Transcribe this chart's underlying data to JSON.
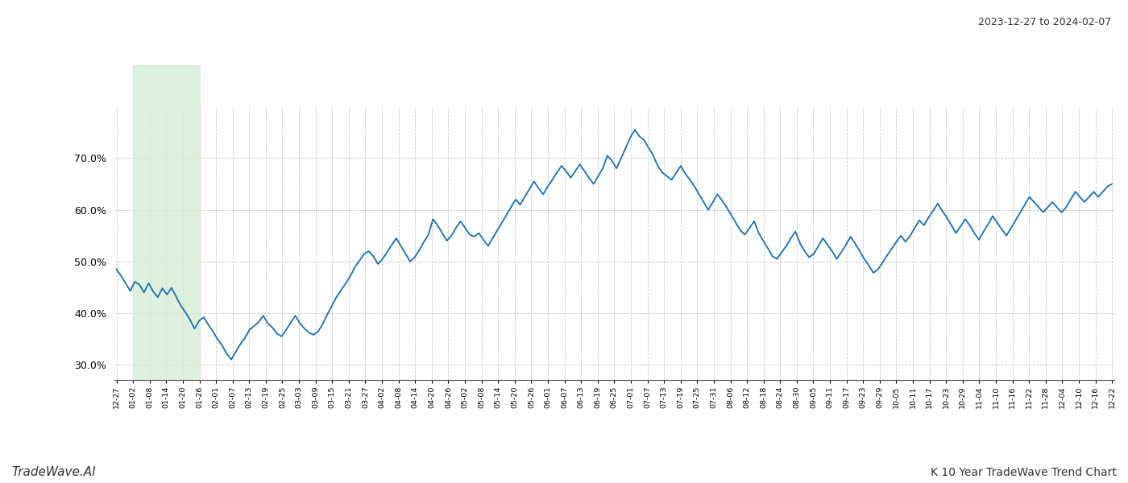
{
  "title_top_right": "2023-12-27 to 2024-02-07",
  "title_bottom_left": "TradeWave.AI",
  "title_bottom_right": "K 10 Year TradeWave Trend Chart",
  "line_color": "#1a6faf",
  "line_width": 1.3,
  "bg_color": "#ffffff",
  "grid_color": "#c8c8c8",
  "grid_linestyle": "--",
  "highlight_color": "#d6edd6",
  "highlight_alpha": 0.8,
  "ylim": [
    27.0,
    80.0
  ],
  "yticks": [
    30.0,
    40.0,
    50.0,
    60.0,
    70.0
  ],
  "xtick_labels": [
    "12-27",
    "01-02",
    "01-08",
    "01-14",
    "01-20",
    "01-26",
    "02-01",
    "02-07",
    "02-13",
    "02-19",
    "02-25",
    "03-03",
    "03-09",
    "03-15",
    "03-21",
    "03-27",
    "04-02",
    "04-08",
    "04-14",
    "04-20",
    "04-26",
    "05-02",
    "05-08",
    "05-14",
    "05-20",
    "05-26",
    "06-01",
    "06-07",
    "06-13",
    "06-19",
    "06-25",
    "07-01",
    "07-07",
    "07-13",
    "07-19",
    "07-25",
    "07-31",
    "08-06",
    "08-12",
    "08-18",
    "08-24",
    "08-30",
    "09-05",
    "09-11",
    "09-17",
    "09-23",
    "09-29",
    "10-05",
    "10-11",
    "10-17",
    "10-23",
    "10-29",
    "11-04",
    "11-10",
    "11-16",
    "11-22",
    "11-28",
    "12-04",
    "12-10",
    "12-16",
    "12-22"
  ],
  "highlight_label_start": "01-02",
  "highlight_label_end": "01-26",
  "values": [
    48.5,
    47.2,
    45.8,
    44.3,
    46.1,
    45.5,
    44.0,
    45.8,
    44.2,
    43.1,
    44.8,
    43.6,
    44.9,
    43.2,
    41.5,
    40.2,
    38.8,
    37.0,
    38.5,
    39.2,
    37.8,
    36.5,
    35.0,
    33.8,
    32.2,
    31.0,
    32.5,
    34.0,
    35.2,
    36.8,
    37.5,
    38.3,
    39.5,
    38.0,
    37.2,
    36.0,
    35.5,
    36.8,
    38.2,
    39.5,
    38.0,
    37.0,
    36.2,
    35.8,
    36.5,
    38.0,
    39.8,
    41.5,
    43.2,
    44.5,
    45.8,
    47.2,
    49.0,
    50.2,
    51.5,
    52.0,
    51.0,
    49.5,
    50.5,
    51.8,
    53.2,
    54.5,
    53.0,
    51.5,
    50.0,
    50.8,
    52.2,
    53.8,
    55.2,
    58.2,
    57.0,
    55.5,
    54.0,
    55.0,
    56.5,
    57.8,
    56.5,
    55.2,
    54.8,
    55.5,
    54.2,
    53.0,
    54.5,
    56.0,
    57.5,
    59.0,
    60.5,
    62.0,
    61.0,
    62.5,
    64.0,
    65.5,
    64.2,
    63.0,
    64.5,
    65.8,
    67.2,
    68.5,
    67.5,
    66.2,
    67.5,
    68.8,
    67.5,
    66.2,
    65.0,
    66.5,
    68.0,
    70.5,
    69.5,
    68.0,
    70.0,
    72.0,
    74.0,
    75.5,
    74.2,
    73.5,
    72.0,
    70.5,
    68.5,
    67.2,
    66.5,
    65.8,
    67.2,
    68.5,
    67.0,
    65.8,
    64.5,
    63.0,
    61.5,
    60.0,
    61.5,
    63.0,
    61.8,
    60.5,
    59.0,
    57.5,
    56.0,
    55.2,
    56.5,
    57.8,
    55.5,
    54.0,
    52.5,
    51.0,
    50.5,
    51.8,
    53.0,
    54.5,
    55.8,
    53.5,
    52.0,
    50.8,
    51.5,
    53.0,
    54.5,
    53.2,
    52.0,
    50.5,
    51.8,
    53.2,
    54.8,
    53.5,
    52.0,
    50.5,
    49.2,
    47.8,
    48.5,
    49.8,
    51.2,
    52.5,
    53.8,
    55.0,
    53.8,
    55.0,
    56.5,
    58.0,
    57.0,
    58.5,
    59.8,
    61.2,
    59.8,
    58.5,
    57.0,
    55.5,
    56.8,
    58.2,
    57.0,
    55.5,
    54.2,
    55.8,
    57.2,
    58.8,
    57.5,
    56.2,
    55.0,
    56.5,
    58.0,
    59.5,
    61.0,
    62.5,
    61.5,
    60.5,
    59.5,
    60.5,
    61.5,
    60.5,
    59.5,
    60.5,
    62.0,
    63.5,
    62.5,
    61.5,
    62.5,
    63.5,
    62.5,
    63.5,
    64.5,
    65.0
  ]
}
